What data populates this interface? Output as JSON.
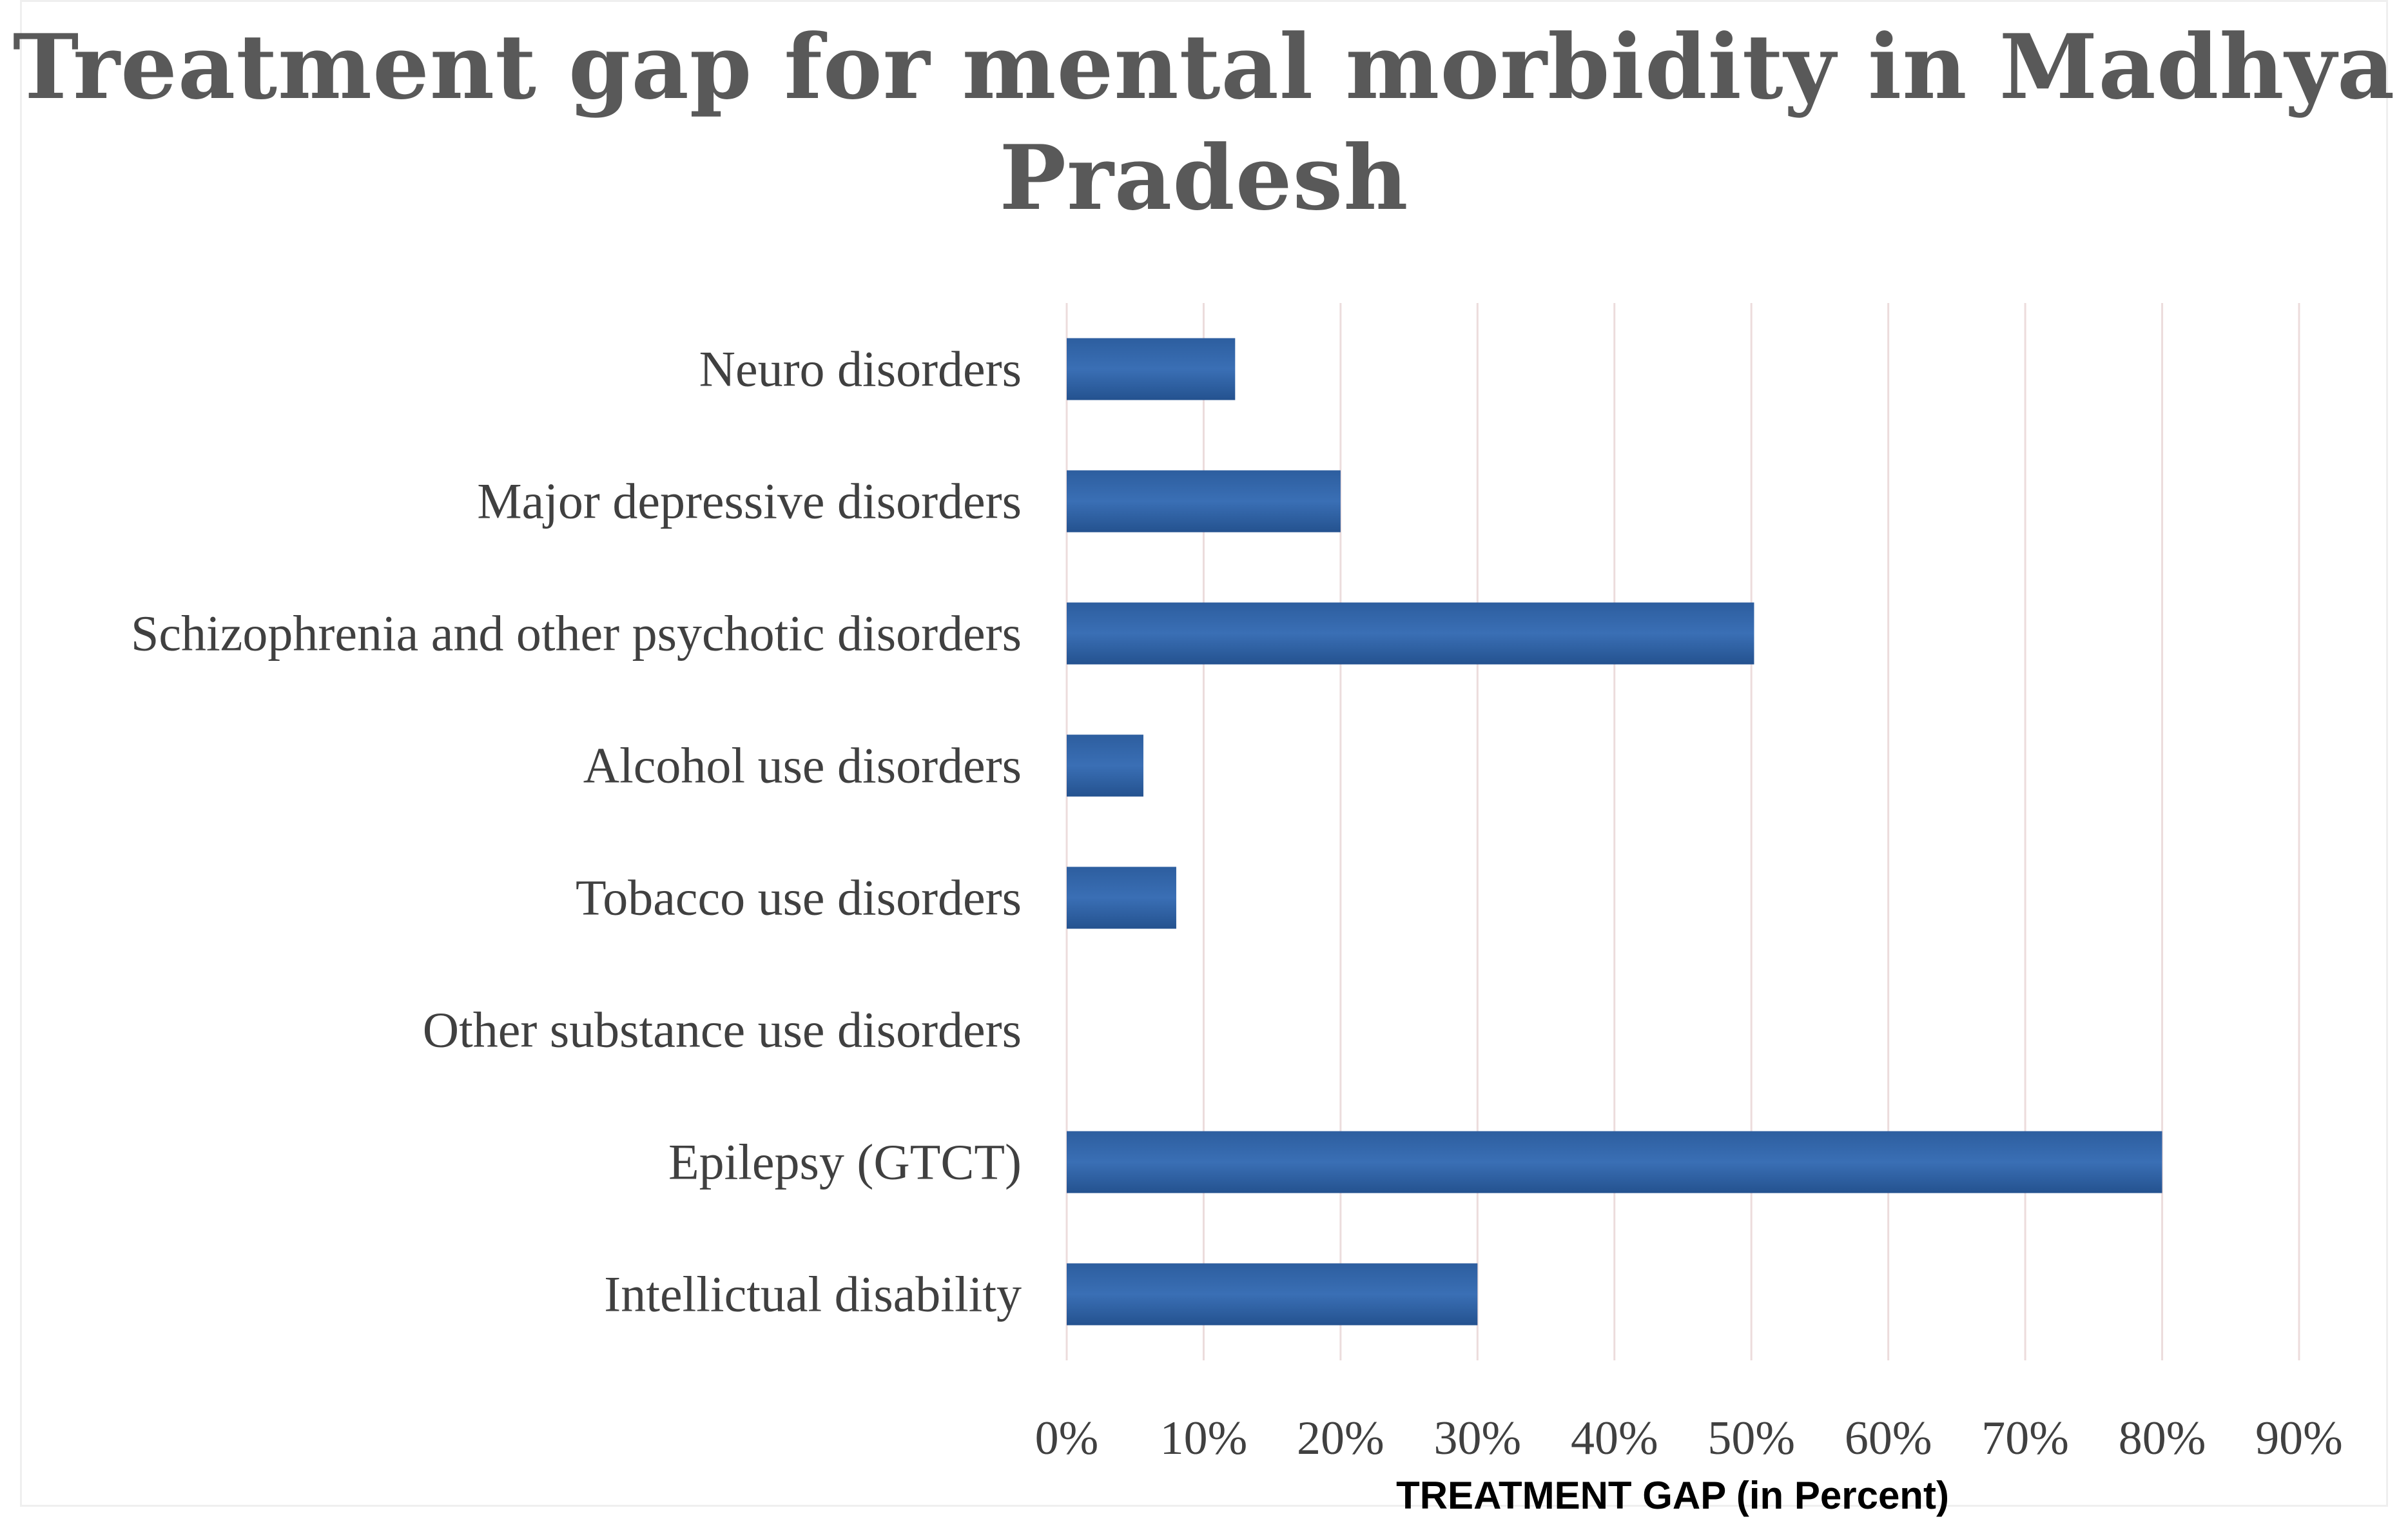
{
  "chart_data": {
    "type": "bar",
    "orientation": "horizontal",
    "title": "Treatment  gap for mental morbidity  in Madhya  Pradesh",
    "xlabel": "TREATMENT GAP (in Percent)",
    "ylabel": "",
    "xlim": [
      0,
      90
    ],
    "x_ticks": [
      "0%",
      "10%",
      "20%",
      "30%",
      "40%",
      "50%",
      "60%",
      "70%",
      "80%",
      "90%"
    ],
    "categories": [
      "Neuro disorders",
      "Major depressive disorders",
      "Schizophrenia and other psychotic disorders",
      "Alcohol use disorders",
      "Tobacco use disorders",
      "Other substance use disorders",
      "Epilepsy (GTCT)",
      "Intellictual disability"
    ],
    "values": [
      12.3,
      20,
      50.2,
      5.6,
      8,
      0,
      80,
      30
    ],
    "grid": true,
    "legend": "none",
    "bar_color": "#2e62a8"
  }
}
